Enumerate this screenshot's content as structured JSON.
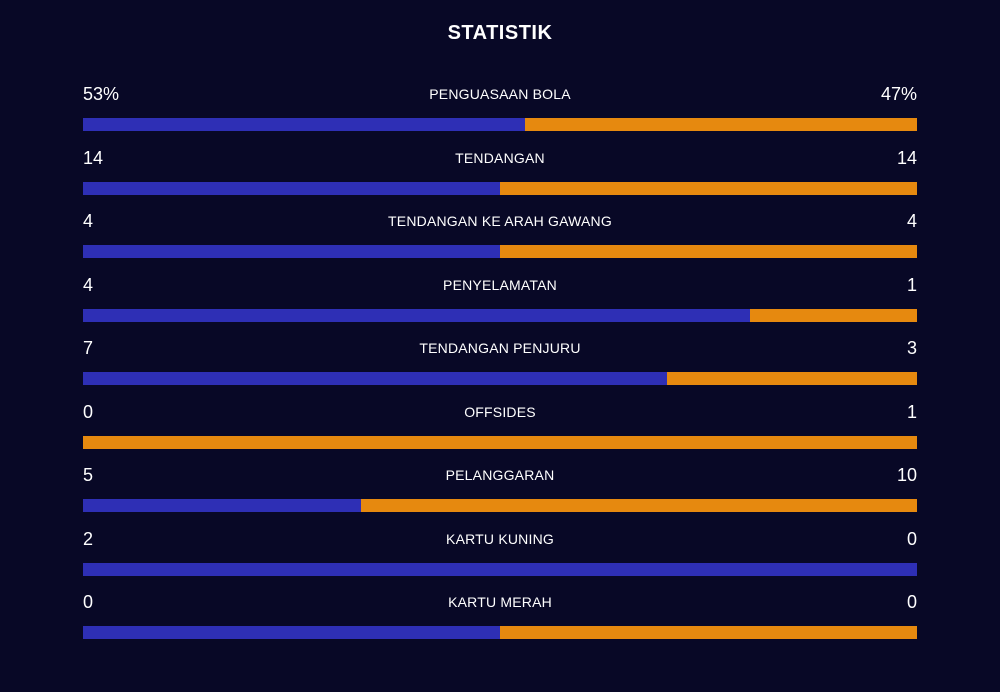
{
  "title": "STATISTIK",
  "colors": {
    "background": "#080826",
    "home": "#2e2fb5",
    "away": "#e6890f",
    "text": "#ffffff"
  },
  "stats": [
    {
      "label": "PENGUASAAN BOLA",
      "left": "53%",
      "right": "47%",
      "home_share": 0.53
    },
    {
      "label": "TENDANGAN",
      "left": "14",
      "right": "14",
      "home_share": 0.5
    },
    {
      "label": "TENDANGAN KE ARAH GAWANG",
      "left": "4",
      "right": "4",
      "home_share": 0.5
    },
    {
      "label": "PENYELAMATAN",
      "left": "4",
      "right": "1",
      "home_share": 0.8
    },
    {
      "label": "TENDANGAN PENJURU",
      "left": "7",
      "right": "3",
      "home_share": 0.7
    },
    {
      "label": "OFFSIDES",
      "left": "0",
      "right": "1",
      "home_share": 0.0
    },
    {
      "label": "PELANGGARAN",
      "left": "5",
      "right": "10",
      "home_share": 0.3333
    },
    {
      "label": "KARTU KUNING",
      "left": "2",
      "right": "0",
      "home_share": 1.0
    },
    {
      "label": "KARTU MERAH",
      "left": "0",
      "right": "0",
      "home_share": 0.5
    }
  ]
}
